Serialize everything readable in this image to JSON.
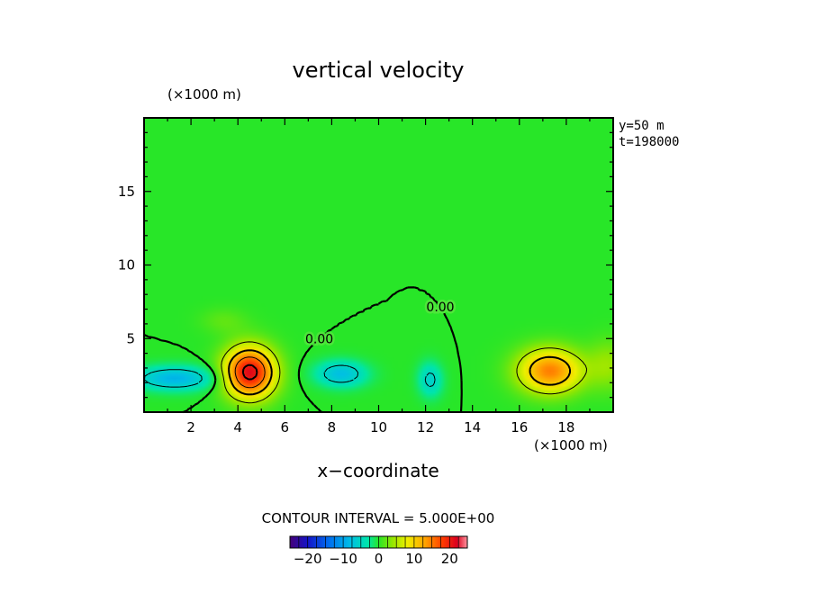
{
  "chart_data": {
    "type": "heatmap",
    "title": "vertical velocity",
    "xlabel": "x−coordinate",
    "x_unit": "(×1000 m)",
    "y_unit": "(×1000 m)",
    "xlim": [
      0,
      20
    ],
    "ylim": [
      0,
      20
    ],
    "x_ticks": [
      "2",
      "4",
      "6",
      "8",
      "10",
      "12",
      "14",
      "16",
      "18"
    ],
    "y_ticks": [
      "5",
      "10",
      "15"
    ],
    "info_lines": [
      "y=50  m",
      "t=198000"
    ],
    "contour_interval_text": "CONTOUR INTERVAL = 5.000E+00",
    "contour_label": "0.00",
    "contour_interval": 5,
    "colorbar": {
      "range": [
        -25,
        25
      ],
      "ticks": [
        "−20",
        "−10",
        "0",
        "10",
        "20"
      ],
      "tick_values": [
        -20,
        -10,
        0,
        10,
        20
      ]
    },
    "features": [
      {
        "name": "updraft",
        "x": 4.5,
        "y": 2.7,
        "sx": 0.75,
        "sy": 1.2,
        "amp": 22
      },
      {
        "name": "updraft",
        "x": 17.3,
        "y": 2.8,
        "sx": 0.95,
        "sy": 1.05,
        "amp": 15
      },
      {
        "name": "downdraft",
        "x": 1.3,
        "y": 2.3,
        "sx": 1.2,
        "sy": 0.55,
        "amp": -9
      },
      {
        "name": "downdraft",
        "x": 8.4,
        "y": 2.6,
        "sx": 0.75,
        "sy": 0.6,
        "amp": -8
      },
      {
        "name": "downdraft",
        "x": 12.2,
        "y": 2.2,
        "sx": 0.35,
        "sy": 0.8,
        "amp": -6
      },
      {
        "name": "weak-up",
        "x": 19.8,
        "y": 3.2,
        "sx": 0.6,
        "sy": 1.2,
        "amp": 4
      },
      {
        "name": "weak-up",
        "x": 3.4,
        "y": 6.2,
        "sx": 0.7,
        "sy": 0.6,
        "amp": 2
      }
    ]
  }
}
